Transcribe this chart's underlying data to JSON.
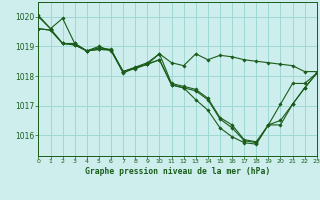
{
  "title": "Graphe pression niveau de la mer (hPa)",
  "background_color": "#cdeeed",
  "grid_color": "#9fd8d5",
  "line_color": "#1a5c1a",
  "text_color": "#1a5c1a",
  "xlim": [
    0,
    23
  ],
  "ylim": [
    1015.3,
    1020.5
  ],
  "yticks": [
    1016,
    1017,
    1018,
    1019,
    1020
  ],
  "xticks": [
    0,
    1,
    2,
    3,
    4,
    5,
    6,
    7,
    8,
    9,
    10,
    11,
    12,
    13,
    14,
    15,
    16,
    17,
    18,
    19,
    20,
    21,
    22,
    23
  ],
  "series": [
    [
      1020.05,
      1019.6,
      1019.95,
      1019.1,
      1018.85,
      1019.0,
      1018.85,
      1018.15,
      1018.25,
      1018.4,
      1018.75,
      1018.45,
      1018.35,
      1018.75,
      1018.55,
      1018.7,
      1018.65,
      1018.55,
      1018.5,
      1018.45,
      1018.4,
      1018.35,
      1018.15,
      1018.15
    ],
    [
      1020.0,
      1019.6,
      1019.1,
      1019.1,
      1018.85,
      1018.95,
      1018.9,
      1018.15,
      1018.3,
      1018.45,
      1018.75,
      1017.75,
      1017.65,
      1017.55,
      1017.25,
      1016.6,
      1016.35,
      1015.85,
      1015.78,
      1016.35,
      1017.05,
      1017.75,
      1017.75,
      1018.1
    ],
    [
      1019.6,
      1019.55,
      1019.1,
      1019.05,
      1018.85,
      1018.9,
      1018.88,
      1018.15,
      1018.28,
      1018.4,
      1018.55,
      1017.7,
      1017.6,
      1017.5,
      1017.2,
      1016.55,
      1016.25,
      1015.82,
      1015.75,
      1016.35,
      1016.5,
      1017.05,
      1017.6,
      1018.1
    ],
    [
      1019.6,
      1019.55,
      1019.1,
      1019.05,
      1018.85,
      1018.9,
      1018.88,
      1018.1,
      1018.28,
      1018.4,
      1018.55,
      1017.7,
      1017.6,
      1017.2,
      1016.85,
      1016.25,
      1015.95,
      1015.75,
      1015.7,
      1016.35,
      1016.35,
      1017.05,
      1017.6,
      1018.1
    ]
  ]
}
